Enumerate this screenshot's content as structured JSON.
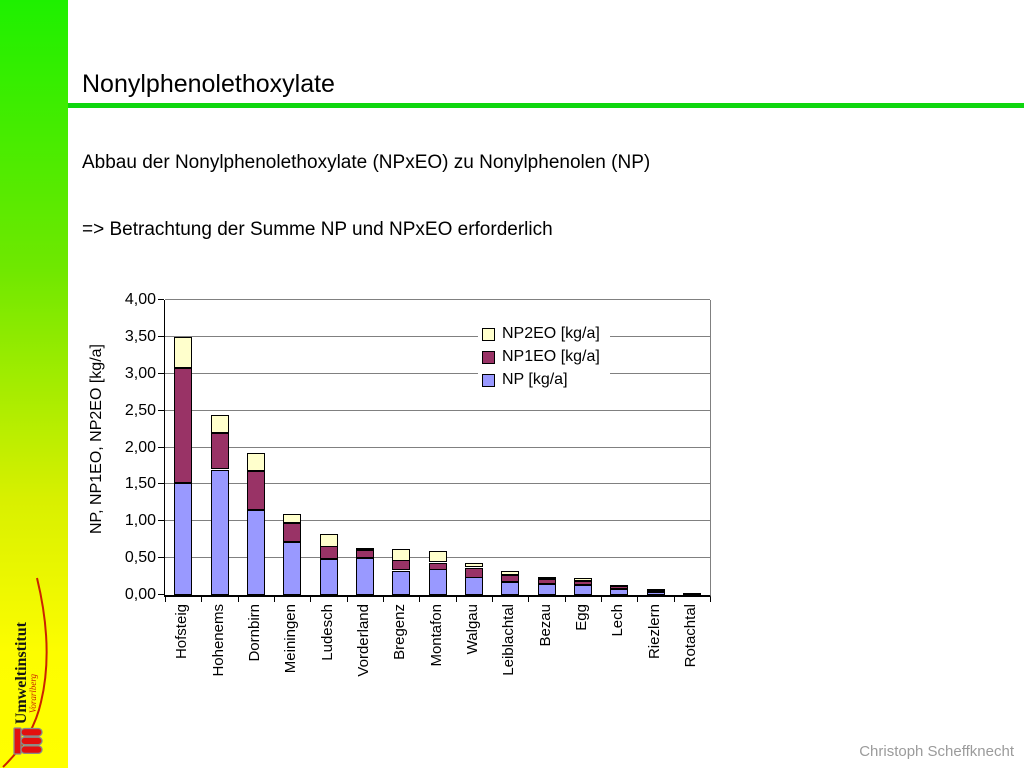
{
  "slide": {
    "title": "Nonylphenolethoxylate",
    "body_line1": "Abbau der Nonylphenolethoxylate (NPxEO) zu Nonylphenolen (NP)",
    "body_line2": "=> Betrachtung der Summe NP und NPxEO erforderlich",
    "footer_author": "Christoph Scheffknecht",
    "accent_rule_color": "#0fd60f"
  },
  "sidebar": {
    "org_name": "Umweltinstitut",
    "org_region": "Vorarlberg",
    "logo": "vorarlberg-crest-icon",
    "gradient_top": "#1ef000",
    "gradient_bottom": "#ffff00",
    "curve_color": "#cc2200"
  },
  "chart_data": {
    "type": "bar",
    "stacked": true,
    "title": "",
    "xlabel": "",
    "ylabel": "NP, NP1EO, NP2EO [kg/a]",
    "ylim": [
      0,
      4
    ],
    "ytick_step": 0.5,
    "ytick_labels": [
      "0,00",
      "0,50",
      "1,00",
      "1,50",
      "2,00",
      "2,50",
      "3,00",
      "3,50",
      "4,00"
    ],
    "grid": true,
    "legend_position": "inside-top-right",
    "legend_labels": [
      "NP2EO [kg/a]",
      "NP1EO [kg/a]",
      "NP [kg/a]"
    ],
    "categories": [
      "Hofsteig",
      "Hohenems",
      "Dornbirn",
      "Meiningen",
      "Ludesch",
      "Vorderland",
      "Bregenz",
      "Montafon",
      "Walgau",
      "Leiblachtal",
      "Bezau",
      "Egg",
      "Lech",
      "Riezlern",
      "Rotachtal"
    ],
    "series": [
      {
        "name": "NP [kg/a]",
        "color": "#9999FF",
        "values": [
          1.52,
          1.7,
          1.15,
          0.72,
          0.49,
          0.5,
          0.33,
          0.35,
          0.24,
          0.17,
          0.15,
          0.14,
          0.08,
          0.04,
          0.01
        ]
      },
      {
        "name": "NP1EO [kg/a]",
        "color": "#993366",
        "values": [
          1.56,
          0.49,
          0.53,
          0.26,
          0.17,
          0.11,
          0.14,
          0.09,
          0.13,
          0.1,
          0.07,
          0.05,
          0.05,
          0.03,
          0.02
        ]
      },
      {
        "name": "NP2EO [kg/a]",
        "color": "#FFFFCC",
        "values": [
          0.42,
          0.25,
          0.25,
          0.12,
          0.17,
          0.03,
          0.16,
          0.15,
          0.06,
          0.05,
          0.03,
          0.04,
          0.01,
          0.01,
          0.0
        ]
      }
    ]
  }
}
